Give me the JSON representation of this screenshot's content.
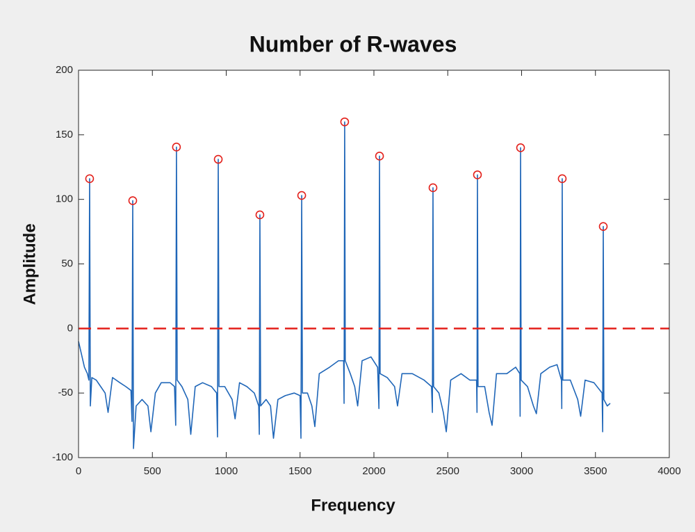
{
  "chart_data": {
    "type": "line",
    "title": "Number of R-waves",
    "xlabel": "Frequency",
    "ylabel": "Amplitude",
    "xlim": [
      0,
      4000
    ],
    "ylim": [
      -100,
      200
    ],
    "xticks": [
      0,
      500,
      1000,
      1500,
      2000,
      2500,
      3000,
      3500,
      4000
    ],
    "yticks": [
      -100,
      -50,
      0,
      50,
      100,
      150,
      200
    ],
    "grid": false,
    "threshold": {
      "value": 0,
      "color": "#e3201b",
      "style": "dashed"
    },
    "series": [
      {
        "color": "#1f66b8",
        "marker": "none",
        "x": [
          0,
          20,
          40,
          60,
          70,
          75,
          80,
          90,
          120,
          150,
          180,
          200,
          230,
          280,
          320,
          355,
          362,
          367,
          372,
          390,
          430,
          470,
          490,
          520,
          560,
          620,
          650,
          658,
          663,
          668,
          700,
          740,
          760,
          790,
          840,
          900,
          935,
          941,
          946,
          951,
          990,
          1040,
          1060,
          1090,
          1140,
          1190,
          1220,
          1224,
          1228,
          1233,
          1270,
          1300,
          1320,
          1350,
          1400,
          1460,
          1500,
          1506,
          1511,
          1516,
          1550,
          1580,
          1600,
          1630,
          1700,
          1760,
          1795,
          1798,
          1802,
          1806,
          1840,
          1870,
          1890,
          1920,
          1980,
          2025,
          2034,
          2038,
          2042,
          2090,
          2140,
          2160,
          2190,
          2260,
          2340,
          2390,
          2396,
          2400,
          2404,
          2440,
          2470,
          2490,
          2520,
          2590,
          2650,
          2695,
          2698,
          2701,
          2705,
          2750,
          2780,
          2800,
          2830,
          2900,
          2960,
          2988,
          2990,
          2993,
          2997,
          3040,
          3080,
          3100,
          3130,
          3190,
          3240,
          3270,
          3272,
          3275,
          3279,
          3330,
          3380,
          3400,
          3430,
          3490,
          3545,
          3549,
          3553,
          3557,
          3580,
          3600
        ],
        "values": [
          -10,
          -20,
          -30,
          -35,
          -40,
          116,
          -60,
          -38,
          -40,
          -45,
          -50,
          -65,
          -38,
          -42,
          -45,
          -48,
          -72,
          99,
          -93,
          -60,
          -55,
          -60,
          -80,
          -50,
          -42,
          -42,
          -45,
          -75,
          140.5,
          -40,
          -45,
          -55,
          -82,
          -45,
          -42,
          -45,
          -50,
          -84,
          131,
          -45,
          -45,
          -55,
          -70,
          -42,
          -45,
          -50,
          -60,
          -82,
          88,
          -60,
          -55,
          -60,
          -85,
          -55,
          -52,
          -50,
          -52,
          -85,
          103,
          -50,
          -50,
          -60,
          -76,
          -35,
          -30,
          -25,
          -25,
          -58,
          160,
          -25,
          -35,
          -45,
          -60,
          -25,
          -22,
          -30,
          -62,
          133.5,
          -35,
          -38,
          -45,
          -60,
          -35,
          -35,
          -40,
          -45,
          -65,
          109,
          -45,
          -50,
          -65,
          -80,
          -40,
          -35,
          -40,
          -40,
          -65,
          119,
          -45,
          -45,
          -65,
          -75,
          -35,
          -35,
          -30,
          -35,
          -68,
          140,
          -40,
          -45,
          -60,
          -66,
          -35,
          -30,
          -28,
          -40,
          -62,
          116,
          -40,
          -40,
          -55,
          -68,
          -40,
          -42,
          -50,
          -80,
          79,
          -55,
          -60,
          -58
        ]
      },
      {
        "color": "#e3201b",
        "marker": "circle",
        "x": [
          75,
          367,
          663,
          946,
          1228,
          1511,
          1802,
          2038,
          2400,
          2701,
          2993,
          3275,
          3553
        ],
        "values": [
          116,
          99,
          140.5,
          131,
          88,
          103,
          160,
          133.5,
          109,
          119,
          140,
          116,
          79
        ]
      }
    ]
  }
}
